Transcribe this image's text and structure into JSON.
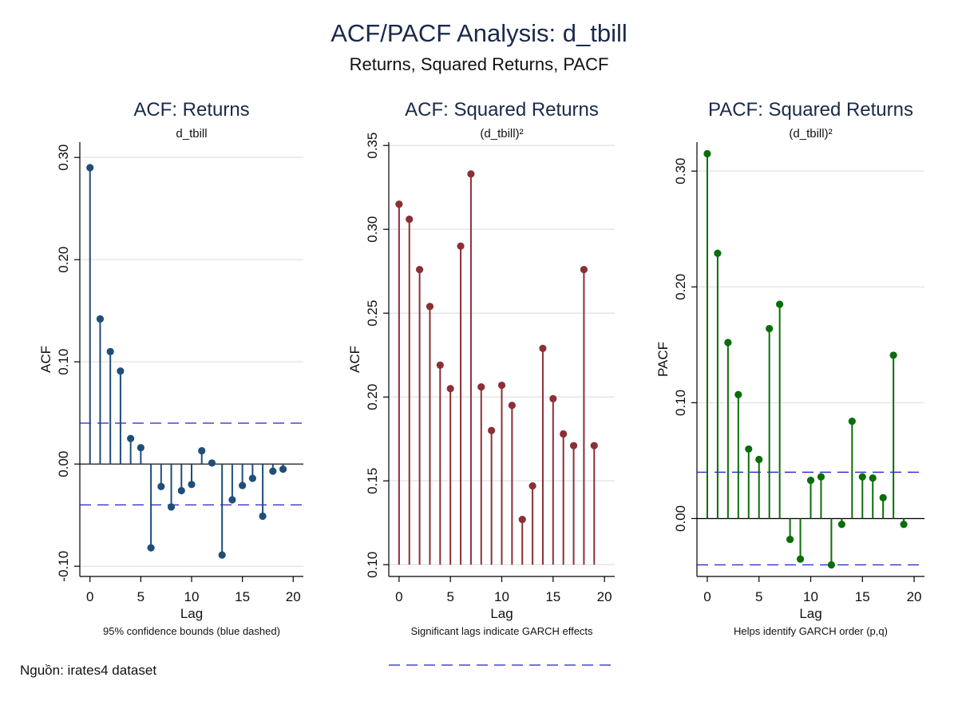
{
  "title": "ACF/PACF Analysis: d_tbill",
  "subtitle": "Returns, Squared Returns, PACF",
  "source": "Nguồn: irates4 dataset",
  "colors": {
    "title": "#1a2a4a",
    "confidence": "#2222cc",
    "grid": "#e6e6e6"
  },
  "chart_data": [
    {
      "type": "stem",
      "title": "ACF: Returns",
      "subtitle": "d_tbill",
      "xlabel": "Lag",
      "ylabel": "ACF",
      "note": "95% confidence bounds (blue dashed)",
      "color": "#1f4e79",
      "xlim": [
        -1,
        21
      ],
      "ylim": [
        -0.11,
        0.315
      ],
      "xticks": [
        0,
        5,
        10,
        15,
        20
      ],
      "yticks": [
        -0.1,
        0.0,
        0.1,
        0.2,
        0.3
      ],
      "ytick_labels": [
        "-0.10",
        "0.00",
        "0.10",
        "0.20",
        "0.30"
      ],
      "baseline": 0,
      "zero_line": true,
      "confidence_bounds": [
        0.04,
        -0.04
      ],
      "x": [
        0,
        1,
        2,
        3,
        4,
        5,
        6,
        7,
        8,
        9,
        10,
        11,
        12,
        13,
        14,
        15,
        16,
        17,
        18,
        19
      ],
      "values": [
        0.29,
        0.142,
        0.11,
        0.091,
        0.025,
        0.016,
        -0.082,
        -0.022,
        -0.042,
        -0.026,
        -0.02,
        0.013,
        0.001,
        -0.089,
        -0.035,
        -0.021,
        -0.014,
        -0.051,
        -0.007,
        -0.005
      ]
    },
    {
      "type": "stem",
      "title": "ACF: Squared Returns",
      "subtitle": "(d_tbill)²",
      "xlabel": "Lag",
      "ylabel": "ACF",
      "note": "Significant lags indicate GARCH effects",
      "color": "#8b3036",
      "xlim": [
        -1,
        21
      ],
      "ylim": [
        0.093,
        0.352
      ],
      "xticks": [
        0,
        5,
        10,
        15,
        20
      ],
      "yticks": [
        0.1,
        0.15,
        0.2,
        0.25,
        0.3,
        0.35
      ],
      "ytick_labels": [
        "0.10",
        "0.15",
        "0.20",
        "0.25",
        "0.30",
        "0.35"
      ],
      "baseline": 0.1,
      "zero_line": false,
      "confidence_bounds": [
        0.04
      ],
      "x": [
        0,
        1,
        2,
        3,
        4,
        5,
        6,
        7,
        8,
        9,
        10,
        11,
        12,
        13,
        14,
        15,
        16,
        17,
        18,
        19
      ],
      "values": [
        0.315,
        0.306,
        0.276,
        0.254,
        0.219,
        0.205,
        0.29,
        0.333,
        0.206,
        0.18,
        0.207,
        0.195,
        0.127,
        0.147,
        0.229,
        0.199,
        0.178,
        0.171,
        0.276,
        0.171
      ]
    },
    {
      "type": "stem",
      "title": "PACF: Squared Returns",
      "subtitle": "(d_tbill)²",
      "xlabel": "Lag",
      "ylabel": "PACF",
      "note": "Helps identify GARCH order (p,q)",
      "color": "#0a6e0a",
      "xlim": [
        -1,
        21
      ],
      "ylim": [
        -0.05,
        0.325
      ],
      "xticks": [
        0,
        5,
        10,
        15,
        20
      ],
      "yticks": [
        0.0,
        0.1,
        0.2,
        0.3
      ],
      "ytick_labels": [
        "0.00",
        "0.10",
        "0.20",
        "0.30"
      ],
      "baseline": 0,
      "zero_line": true,
      "confidence_bounds": [
        0.04,
        -0.04
      ],
      "x": [
        0,
        1,
        2,
        3,
        4,
        5,
        6,
        7,
        8,
        9,
        10,
        11,
        12,
        13,
        14,
        15,
        16,
        17,
        18,
        19
      ],
      "values": [
        0.315,
        0.229,
        0.152,
        0.107,
        0.06,
        0.051,
        0.164,
        0.185,
        -0.018,
        -0.035,
        0.033,
        0.036,
        -0.04,
        -0.005,
        0.084,
        0.036,
        0.035,
        0.018,
        0.141,
        -0.005
      ]
    }
  ]
}
